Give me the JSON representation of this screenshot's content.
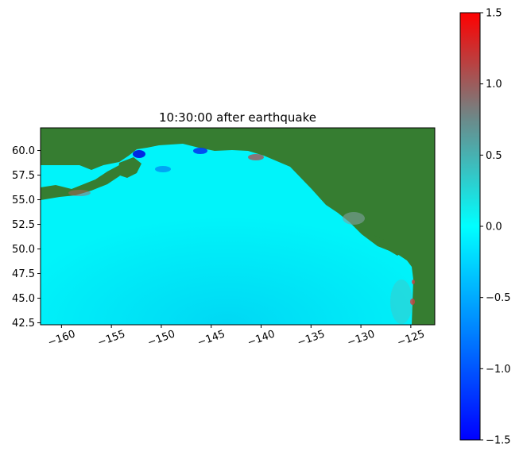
{
  "chart_data": {
    "type": "heatmap",
    "title": "10:30:00 after earthquake",
    "xlabel": "",
    "ylabel": "",
    "xlim": [
      -162.1,
      -122.6
    ],
    "ylim": [
      42.3,
      62.3
    ],
    "xticks": [
      -160,
      -155,
      -150,
      -145,
      -140,
      -135,
      -130,
      -125
    ],
    "xtick_labels": [
      "−160",
      "−155",
      "−150",
      "−145",
      "−140",
      "−135",
      "−130",
      "−125"
    ],
    "yticks": [
      42.5,
      45.0,
      47.5,
      50.0,
      52.5,
      55.0,
      57.5,
      60.0
    ],
    "ytick_labels": [
      "42.5",
      "45.0",
      "47.5",
      "50.0",
      "52.5",
      "55.0",
      "57.5",
      "60.0"
    ],
    "land_color": "#367d31",
    "colorbar": {
      "range": [
        -1.5,
        1.5
      ],
      "ticks": [
        -1.5,
        -1.0,
        -0.5,
        0.0,
        0.5,
        1.0,
        1.5
      ],
      "tick_labels": [
        "−1.5",
        "−1.0",
        "−0.5",
        "0.0",
        "0.5",
        "1.0",
        "1.5"
      ],
      "colors": [
        "#0000ff",
        "#0080ff",
        "#00ffff",
        "#808080",
        "#ff0000"
      ]
    }
  }
}
